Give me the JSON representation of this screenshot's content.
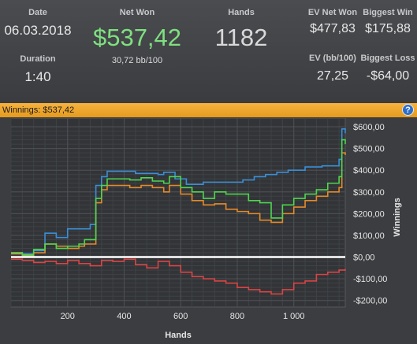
{
  "stats": {
    "date": {
      "label": "Date",
      "value": "06.03.2018"
    },
    "duration": {
      "label": "Duration",
      "value": "1:40"
    },
    "net_won": {
      "label": "Net Won",
      "value": "$537,42",
      "sub": "30,72 bb/100",
      "color": "#7fe07f"
    },
    "hands": {
      "label": "Hands",
      "value": "1182"
    },
    "ev_net_won": {
      "label": "EV Net Won",
      "value": "$477,83"
    },
    "biggest_win": {
      "label": "Biggest Win",
      "value": "$175,88"
    },
    "ev_bb": {
      "label": "EV (bb/100)",
      "value": "27,25"
    },
    "biggest_loss": {
      "label": "Biggest Loss",
      "value": "-$64,00"
    }
  },
  "panel": {
    "header": "Winnings: $537,42",
    "help_icon": "help-icon",
    "help_glyph": "?",
    "accent": "#f0a830"
  },
  "chart_data": {
    "type": "line",
    "xlabel": "Hands",
    "ylabel": "Winnings",
    "xlim": [
      0,
      1182
    ],
    "ylim": [
      -230,
      640
    ],
    "xticks": [
      200,
      400,
      600,
      800,
      1000
    ],
    "xtick_labels": [
      "200",
      "400",
      "600",
      "800",
      "1 000"
    ],
    "yticks": [
      600,
      500,
      400,
      300,
      200,
      100,
      0,
      -100,
      -200
    ],
    "ytick_labels": [
      "$600,00",
      "$500,00",
      "$400,00",
      "$300,00",
      "$200,00",
      "$100,00",
      "$0,00",
      "-$100,00",
      "-$200,00"
    ],
    "grid": true,
    "series": [
      {
        "color": "#3a8fd8",
        "x": [
          0,
          40,
          80,
          120,
          160,
          200,
          240,
          280,
          300,
          320,
          340,
          360,
          400,
          440,
          480,
          520,
          540,
          580,
          620,
          680,
          740,
          780,
          820,
          860,
          900,
          940,
          980,
          1040,
          1100,
          1160,
          1170,
          1182
        ],
        "y": [
          20,
          15,
          30,
          110,
          90,
          130,
          130,
          150,
          330,
          370,
          395,
          395,
          395,
          385,
          385,
          380,
          390,
          360,
          335,
          345,
          345,
          345,
          355,
          370,
          380,
          390,
          400,
          415,
          420,
          450,
          590,
          570
        ]
      },
      {
        "color": "#e58a2a",
        "x": [
          0,
          40,
          80,
          120,
          160,
          200,
          240,
          260,
          300,
          320,
          340,
          380,
          420,
          460,
          500,
          540,
          560,
          600,
          640,
          680,
          720,
          760,
          800,
          840,
          880,
          920,
          960,
          1000,
          1040,
          1080,
          1120,
          1160,
          1170,
          1182
        ],
        "y": [
          15,
          5,
          20,
          60,
          50,
          40,
          50,
          60,
          250,
          310,
          330,
          330,
          320,
          330,
          320,
          300,
          330,
          290,
          260,
          240,
          245,
          220,
          210,
          200,
          170,
          160,
          200,
          230,
          260,
          280,
          300,
          320,
          480,
          470
        ]
      },
      {
        "color": "#4fd64f",
        "x": [
          0,
          40,
          80,
          120,
          160,
          200,
          240,
          260,
          300,
          320,
          340,
          380,
          420,
          460,
          500,
          540,
          560,
          600,
          640,
          680,
          720,
          760,
          800,
          840,
          880,
          920,
          960,
          1000,
          1040,
          1080,
          1120,
          1160,
          1170,
          1182
        ],
        "y": [
          20,
          10,
          35,
          60,
          40,
          50,
          60,
          80,
          270,
          330,
          360,
          360,
          355,
          365,
          350,
          340,
          370,
          320,
          300,
          270,
          300,
          290,
          290,
          260,
          250,
          180,
          240,
          270,
          290,
          310,
          340,
          370,
          540,
          520
        ]
      },
      {
        "color": "#d94545",
        "x": [
          0,
          40,
          80,
          120,
          160,
          200,
          240,
          280,
          320,
          360,
          400,
          440,
          480,
          520,
          560,
          600,
          640,
          680,
          720,
          760,
          800,
          840,
          880,
          920,
          960,
          1000,
          1040,
          1080,
          1120,
          1160,
          1182
        ],
        "y": [
          -10,
          -15,
          -25,
          -20,
          -30,
          -15,
          -30,
          -40,
          -15,
          -20,
          -10,
          -35,
          -50,
          -20,
          -40,
          -70,
          -90,
          -100,
          -110,
          -120,
          -140,
          -150,
          -160,
          -170,
          -150,
          -120,
          -110,
          -80,
          -70,
          -60,
          -55
        ]
      },
      {
        "color": "#ffffff",
        "x": [
          0,
          1182
        ],
        "y": [
          0,
          0
        ]
      }
    ]
  }
}
